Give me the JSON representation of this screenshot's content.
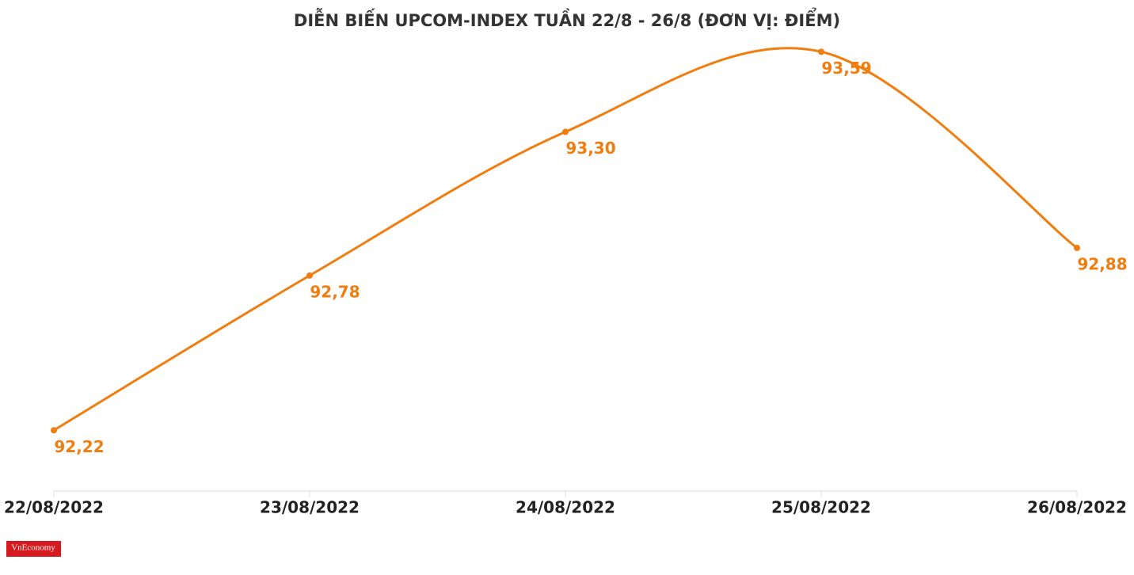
{
  "chart_data": {
    "type": "line",
    "title": "DIỄN BIẾN UPCOM-INDEX TUẦN 22/8 - 26/8 (ĐƠN VỊ: ĐIỂM)",
    "categories": [
      "22/08/2022",
      "23/08/2022",
      "24/08/2022",
      "25/08/2022",
      "26/08/2022"
    ],
    "series": [
      {
        "name": "UPCOM-Index",
        "color": "#ef7d0f",
        "values": [
          92.22,
          92.78,
          93.3,
          93.59,
          92.88
        ],
        "value_labels": [
          "92,22",
          "92,78",
          "93,30",
          "93,59",
          "92,88"
        ]
      }
    ],
    "ylim": [
      92.0,
      93.7
    ],
    "smooth": true
  },
  "logo": "VnEconomy"
}
